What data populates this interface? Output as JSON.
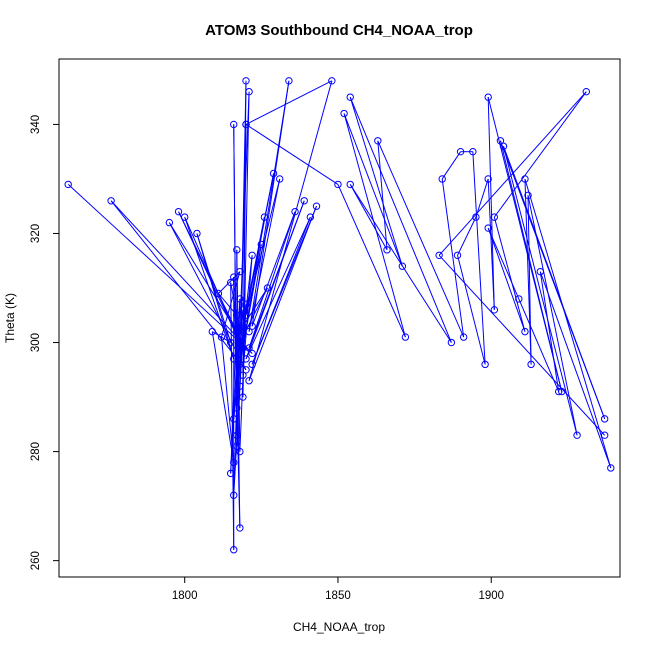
{
  "chart_data": {
    "type": "line",
    "title": "ATOM3 Southbound CH4_NOAA_trop",
    "xlabel": "CH4_NOAA_trop",
    "ylabel": "Theta (K)",
    "xlim": [
      1759,
      1942
    ],
    "ylim": [
      257,
      352
    ],
    "xticks": [
      1800,
      1850,
      1900
    ],
    "yticks": [
      260,
      280,
      300,
      320,
      340
    ],
    "grid": false,
    "legend": "none",
    "series_color": "#0000ff",
    "marker": "open-circle",
    "series": [
      {
        "points": [
          [
            1762,
            329
          ],
          [
            1822,
            298
          ],
          [
            1776,
            326
          ],
          [
            1820,
            295
          ],
          [
            1795,
            322
          ],
          [
            1817,
            302
          ],
          [
            1798,
            324
          ],
          [
            1818,
            300
          ],
          [
            1800,
            323
          ],
          [
            1816,
            297
          ],
          [
            1804,
            320
          ],
          [
            1815,
            300
          ],
          [
            1809,
            302
          ],
          [
            1816,
            278
          ],
          [
            1812,
            301
          ],
          [
            1818,
            313
          ],
          [
            1811,
            309
          ],
          [
            1817,
            305
          ],
          [
            1815,
            311
          ],
          [
            1816,
            262
          ],
          [
            1816,
            312
          ],
          [
            1818,
            266
          ],
          [
            1817,
            305
          ],
          [
            1815,
            276
          ],
          [
            1818,
            308
          ],
          [
            1816,
            272
          ],
          [
            1819,
            302
          ],
          [
            1817,
            281
          ],
          [
            1816,
            340
          ],
          [
            1817,
            283
          ],
          [
            1817,
            317
          ],
          [
            1818,
            280
          ],
          [
            1820,
            307
          ],
          [
            1816,
            286
          ],
          [
            1819,
            306
          ],
          [
            1817,
            288
          ],
          [
            1821,
            346
          ],
          [
            1819,
            290
          ],
          [
            1820,
            340
          ],
          [
            1818,
            292
          ],
          [
            1820,
            348
          ],
          [
            1819,
            294
          ],
          [
            1822,
            316
          ],
          [
            1818,
            296
          ],
          [
            1825,
            318
          ],
          [
            1819,
            299
          ],
          [
            1826,
            323
          ],
          [
            1818,
            300
          ],
          [
            1827,
            310
          ],
          [
            1819,
            303
          ],
          [
            1829,
            331
          ],
          [
            1820,
            305
          ],
          [
            1831,
            330
          ],
          [
            1821,
            302
          ],
          [
            1834,
            348
          ],
          [
            1822,
            303
          ],
          [
            1836,
            324
          ],
          [
            1821,
            299
          ],
          [
            1839,
            326
          ],
          [
            1820,
            297
          ],
          [
            1841,
            323
          ],
          [
            1822,
            296
          ],
          [
            1843,
            325
          ],
          [
            1821,
            293
          ],
          [
            1848,
            348
          ],
          [
            1820,
            340
          ],
          [
            1850,
            329
          ],
          [
            1872,
            301
          ],
          [
            1852,
            342
          ],
          [
            1871,
            314
          ],
          [
            1854,
            345
          ],
          [
            1887,
            300
          ],
          [
            1854,
            329
          ],
          [
            1866,
            317
          ],
          [
            1863,
            337
          ],
          [
            1891,
            301
          ],
          [
            1884,
            330
          ],
          [
            1890,
            335
          ],
          [
            1894,
            335
          ],
          [
            1898,
            296
          ],
          [
            1889,
            316
          ],
          [
            1895,
            323
          ],
          [
            1899,
            330
          ],
          [
            1901,
            306
          ],
          [
            1899,
            345
          ],
          [
            1923,
            291
          ],
          [
            1903,
            337
          ],
          [
            1937,
            286
          ],
          [
            1904,
            336
          ],
          [
            1928,
            283
          ],
          [
            1912,
            327
          ],
          [
            1913,
            296
          ],
          [
            1911,
            330
          ],
          [
            1939,
            277
          ],
          [
            1916,
            313
          ],
          [
            1922,
            291
          ],
          [
            1909,
            308
          ],
          [
            1899,
            321
          ],
          [
            1911,
            302
          ],
          [
            1901,
            323
          ],
          [
            1931,
            346
          ],
          [
            1883,
            316
          ],
          [
            1937,
            283
          ]
        ]
      }
    ]
  }
}
